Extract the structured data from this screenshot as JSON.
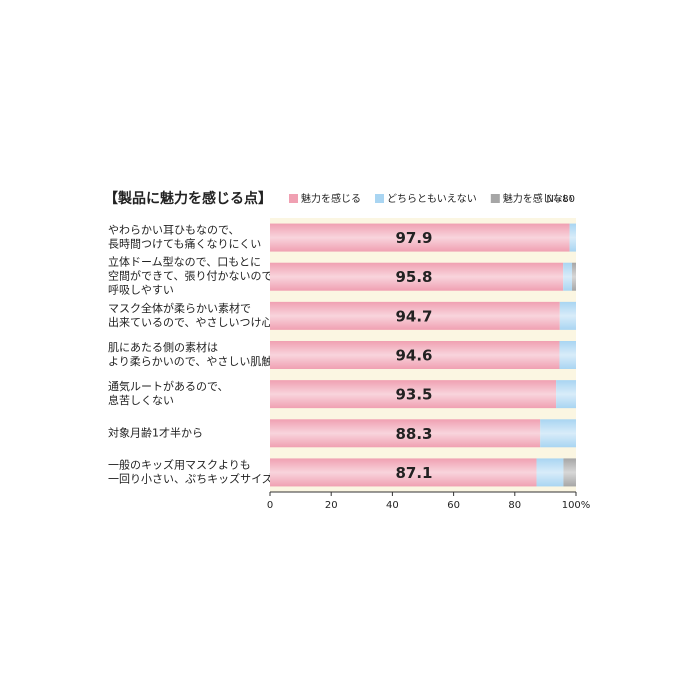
{
  "chart_data": {
    "type": "stacked_barh",
    "title": "【製品に魅力を感じる点】",
    "note": "N=80",
    "categories": [
      [
        "やわらかい耳ひもなので、",
        "長時間つけても痛くなりにくい"
      ],
      [
        "立体ドーム型なので、口もとに",
        "空間ができて、張り付かないので",
        "呼吸しやすい"
      ],
      [
        "マスク全体が柔らかい素材で",
        "出来ているので、やさしいつけ心地"
      ],
      [
        "肌にあたる側の素材は",
        "より柔らかいので、やさしい肌触り"
      ],
      [
        "通気ルートがあるので、",
        "息苦しくない"
      ],
      [
        "対象月齢1才半から"
      ],
      [
        "一般のキッズ用マスクよりも",
        "一回り小さい、ぷちキッズサイズ"
      ]
    ],
    "series": [
      {
        "name": "魅力を感じる",
        "color": "#f0a0b2",
        "values": [
          97.9,
          95.8,
          94.7,
          94.6,
          93.5,
          88.3,
          87.1
        ]
      },
      {
        "name": "どちらともいえない",
        "color": "#a9d5f2",
        "values": [
          2.1,
          2.9,
          5.3,
          5.4,
          6.5,
          11.7,
          8.8
        ]
      },
      {
        "name": "魅力を感じない",
        "color": "#a6a6a6",
        "values": [
          0,
          1.3,
          0,
          0,
          0,
          0,
          4.1
        ]
      }
    ],
    "xlim": [
      0,
      100
    ],
    "xticks": [
      0,
      20,
      40,
      60,
      80,
      {
        "value": 100,
        "label": "100%"
      }
    ]
  }
}
